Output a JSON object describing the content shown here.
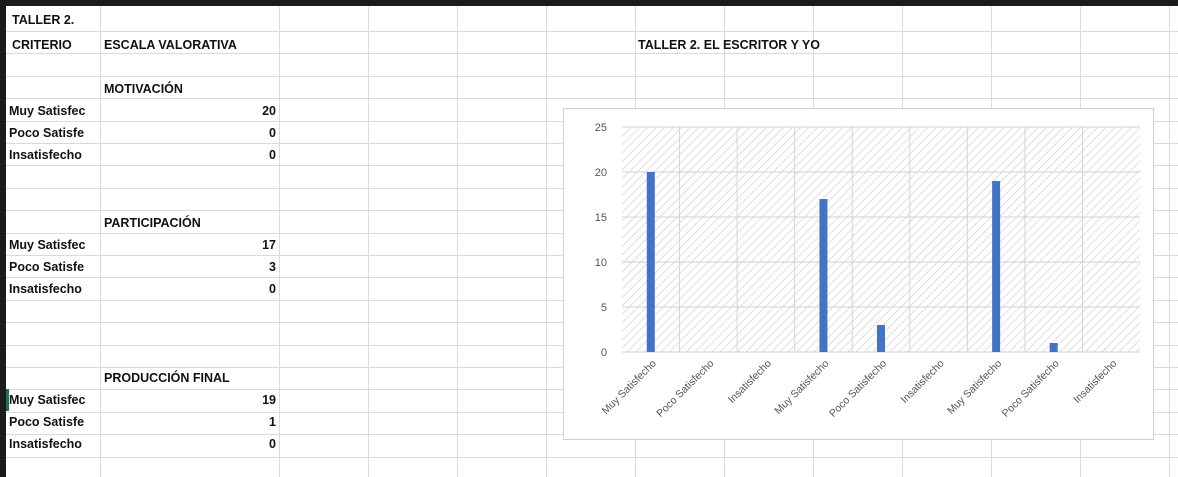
{
  "sheet": {
    "title_cell": "TALLER 2.",
    "header_criterio": "CRITERIO",
    "header_escala": "ESCALA VALORATIVA",
    "chart_title": "TALLER 2. EL ESCRITOR Y YO",
    "sections": [
      {
        "heading": "MOTIVACIÓN",
        "rows": [
          {
            "label": "Muy Satisfec",
            "value": "20"
          },
          {
            "label": "Poco Satisfe",
            "value": "0"
          },
          {
            "label": "Insatisfecho",
            "value": "0"
          }
        ]
      },
      {
        "heading": "PARTICIPACIÓN",
        "rows": [
          {
            "label": "Muy Satisfec",
            "value": "17"
          },
          {
            "label": "Poco Satisfe",
            "value": "3"
          },
          {
            "label": "Insatisfecho",
            "value": "0"
          }
        ]
      },
      {
        "heading": "PRODUCCIÓN FINAL",
        "rows": [
          {
            "label": "Muy Satisfec",
            "value": "19"
          },
          {
            "label": "Poco Satisfe",
            "value": "1"
          },
          {
            "label": "Insatisfecho",
            "value": "0"
          }
        ]
      }
    ]
  },
  "chart_data": {
    "type": "bar",
    "title": "",
    "categories": [
      "Muy Satisfecho",
      "Poco Satisfecho",
      "Insatisfecho",
      "Muy Satisfecho",
      "Poco Satisfecho",
      "Insatisfecho",
      "Muy Satisfecho",
      "Poco Satisfecho",
      "Insatisfecho"
    ],
    "values": [
      20,
      0,
      0,
      17,
      3,
      0,
      19,
      1,
      0
    ],
    "ylim": [
      0,
      25
    ],
    "yticks": [
      0,
      5,
      10,
      15,
      20,
      25
    ],
    "grid": true,
    "bar_color": "#4472c4",
    "plot_background": "hatched-gray"
  }
}
